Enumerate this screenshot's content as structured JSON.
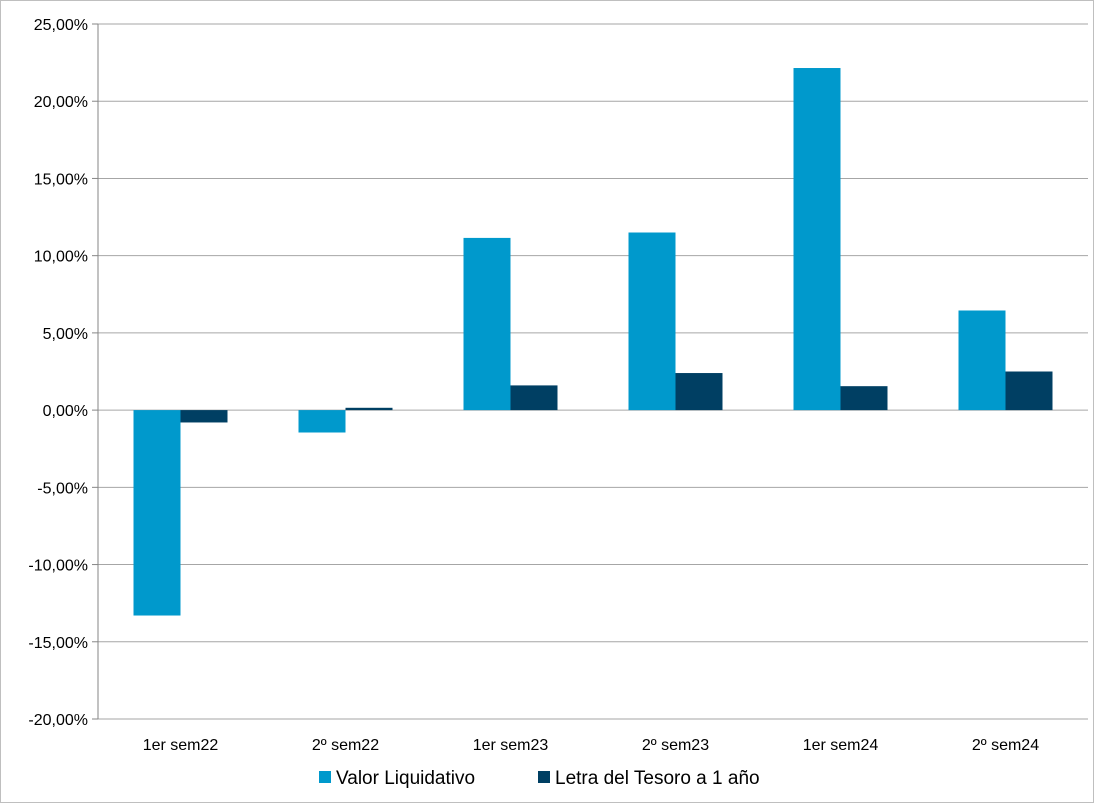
{
  "chart_data": {
    "type": "bar",
    "categories": [
      "1er sem22",
      "2º sem22",
      "1er sem23",
      "2º sem23",
      "1er sem24",
      "2º sem24"
    ],
    "series": [
      {
        "name": "Valor Liquidativo",
        "color": "#0099cc",
        "values": [
          -13.3,
          -1.45,
          11.15,
          11.5,
          22.15,
          6.45
        ]
      },
      {
        "name": "Letra del Tesoro a 1 año",
        "color": "#003f63",
        "values": [
          -0.8,
          0.15,
          1.6,
          2.4,
          1.55,
          2.5
        ]
      }
    ],
    "ylim": [
      -20,
      25
    ],
    "yticks": [
      25,
      20,
      15,
      10,
      5,
      0,
      -5,
      -10,
      -15,
      -20
    ],
    "ytick_labels": [
      "25,00%",
      "20,00%",
      "15,00%",
      "10,00%",
      "5,00%",
      "0,00%",
      "-5,00%",
      "-10,00%",
      "-15,00%",
      "-20,00%"
    ],
    "grid": true,
    "legend_position": "bottom"
  }
}
